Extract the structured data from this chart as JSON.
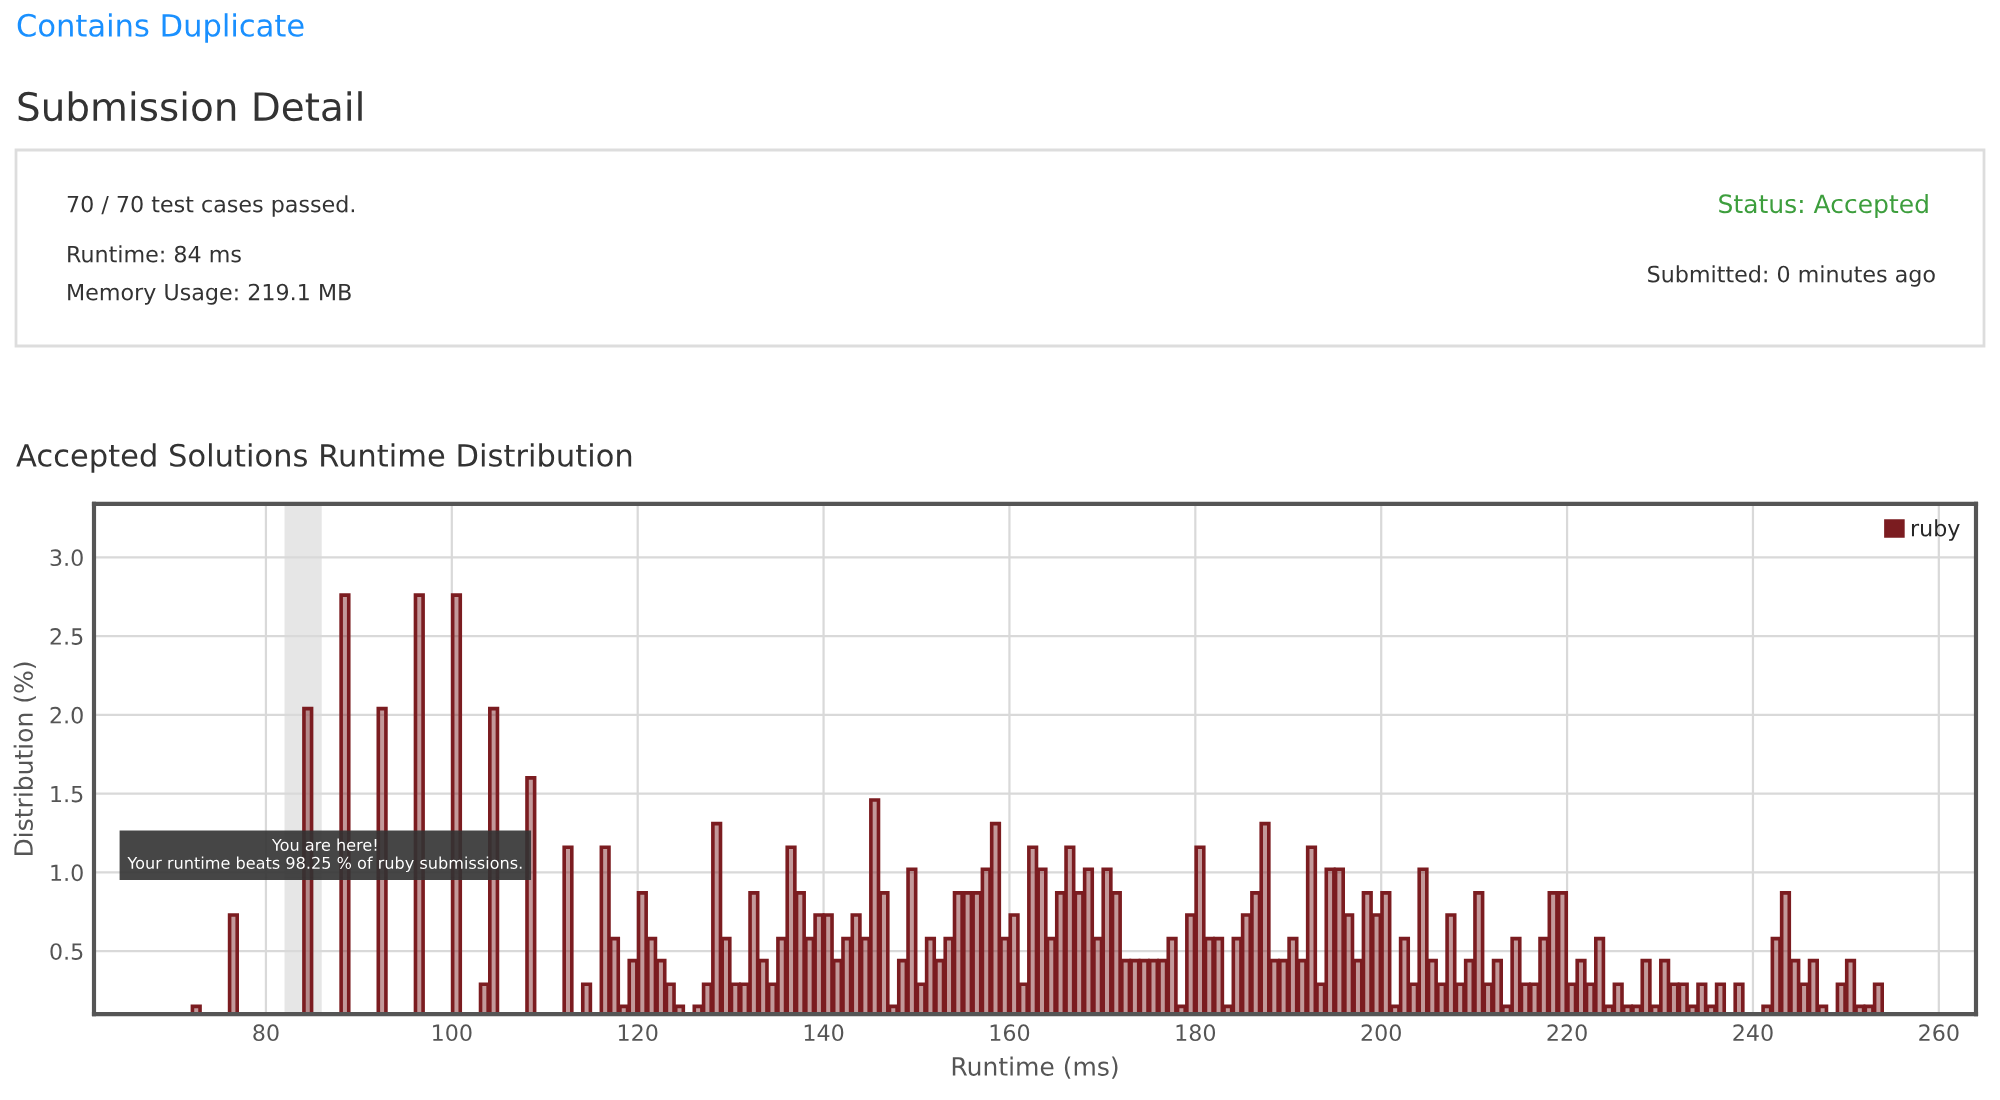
{
  "chart_data": {
    "type": "histogram",
    "title": "Accepted Solutions Runtime Distribution",
    "xlabel": "Runtime (ms)",
    "ylabel": "Distribution (%)",
    "bins": [
      72,
      73,
      74,
      75,
      76,
      77,
      78,
      79,
      80,
      81,
      82,
      83,
      84,
      85,
      86,
      87,
      88,
      89,
      90,
      91,
      92,
      93,
      94,
      95,
      96,
      97,
      98,
      99,
      100,
      101,
      102,
      103,
      104,
      105,
      106,
      107,
      108,
      109,
      110,
      111,
      112,
      113,
      114,
      115,
      116,
      117,
      118,
      119,
      120,
      121,
      122,
      123,
      124,
      125,
      126,
      127,
      128,
      129,
      130,
      131,
      132,
      133,
      134,
      135,
      136,
      137,
      138,
      139,
      140,
      141,
      142,
      143,
      144,
      145,
      146,
      147,
      148,
      149,
      150,
      151,
      152,
      153,
      154,
      155,
      156,
      157,
      158,
      159,
      160,
      161,
      162,
      163,
      164,
      165,
      166,
      167,
      168,
      169,
      170,
      171,
      172,
      173,
      174,
      175,
      176,
      177,
      178,
      179,
      180,
      181,
      182,
      183,
      184,
      185,
      186,
      187,
      188,
      189,
      190,
      191,
      192,
      193,
      194,
      195,
      196,
      197,
      198,
      199,
      200,
      201,
      202,
      203,
      204,
      205,
      206,
      207,
      208,
      209,
      210,
      211,
      212,
      213,
      214,
      215,
      216,
      217,
      218,
      219,
      220,
      221,
      222,
      223,
      224,
      225,
      226,
      227,
      228,
      229,
      230,
      231,
      232,
      233,
      234,
      235,
      236,
      237,
      238,
      239,
      240,
      241,
      242,
      243,
      244,
      245,
      246,
      247,
      248,
      249,
      250,
      251,
      252,
      253,
      254
    ],
    "series": [
      {
        "name": "ruby",
        "color": "#7b1c20",
        "values": [
          0.15,
          null,
          null,
          null,
          0.73,
          null,
          null,
          null,
          null,
          null,
          null,
          null,
          2.04,
          null,
          null,
          null,
          2.76,
          null,
          null,
          null,
          2.04,
          null,
          null,
          null,
          2.76,
          null,
          null,
          null,
          2.76,
          null,
          null,
          0.29,
          2.04,
          null,
          null,
          null,
          1.6,
          null,
          null,
          null,
          1.16,
          null,
          0.29,
          null,
          1.16,
          0.58,
          0.15,
          0.44,
          0.87,
          0.58,
          0.44,
          0.29,
          0.15,
          null,
          0.15,
          0.29,
          1.31,
          0.58,
          0.29,
          0.29,
          0.87,
          0.44,
          0.29,
          0.58,
          1.16,
          0.87,
          0.58,
          0.73,
          0.73,
          0.44,
          0.58,
          0.73,
          0.58,
          1.46,
          0.87,
          0.15,
          0.44,
          1.02,
          0.29,
          0.58,
          0.44,
          0.58,
          0.87,
          0.87,
          0.87,
          1.02,
          1.31,
          0.58,
          0.73,
          0.29,
          1.16,
          1.02,
          0.58,
          0.87,
          1.16,
          0.87,
          1.02,
          0.58,
          1.02,
          0.87,
          0.44,
          0.44,
          0.44,
          0.44,
          0.44,
          0.58,
          0.15,
          0.73,
          1.16,
          0.58,
          0.58,
          0.15,
          0.58,
          0.73,
          0.87,
          1.31,
          0.44,
          0.44,
          0.58,
          0.44,
          1.16,
          0.29,
          1.02,
          1.02,
          0.73,
          0.44,
          0.87,
          0.73,
          0.87,
          0.15,
          0.58,
          0.29,
          1.02,
          0.44,
          0.29,
          0.73,
          0.29,
          0.44,
          0.87,
          0.29,
          0.44,
          0.15,
          0.58,
          0.29,
          0.29,
          0.58,
          0.87,
          0.87,
          0.29,
          0.44,
          0.29,
          0.58,
          0.15,
          0.29,
          0.15,
          0.15,
          0.44,
          0.15,
          0.44,
          0.29,
          0.29,
          0.15,
          0.29,
          0.15,
          0.29,
          null,
          0.29,
          null,
          null,
          0.15,
          0.58,
          0.87,
          0.44,
          0.29,
          0.44,
          0.15,
          null,
          0.29,
          0.44,
          0.15,
          0.15,
          0.29
        ]
      }
    ],
    "xlim": [
      61.5,
      264
    ],
    "xticks": [
      80,
      100,
      120,
      140,
      160,
      180,
      200,
      220,
      240,
      260
    ],
    "ylim": [
      0.1,
      3.34
    ],
    "yticks": [
      {
        "value": 0.5,
        "label": "0.5"
      },
      {
        "value": 1.0,
        "label": "1.0"
      },
      {
        "value": 1.5,
        "label": "1.5"
      },
      {
        "value": 2.0,
        "label": "2.0"
      },
      {
        "value": 2.5,
        "label": "2.5"
      },
      {
        "value": 3.0,
        "label": "3.0"
      }
    ],
    "bands": [
      {
        "axis": "x",
        "from": 82,
        "to": 86,
        "color": "#e6e6e6"
      }
    ],
    "annotations": [
      "Contains Duplicate",
      "Submission Detail",
      "70 / 70 test cases passed.",
      "Runtime: 84 ms",
      "Memory Usage: 219.1 MB",
      "Status: Accepted",
      "Submitted: 0 minutes ago",
      {
        "text": "You are here!\nYour runtime beats 98.25 % of ruby submissions.",
        "x": 84,
        "y": 0.72
      }
    ],
    "grid": true,
    "legend": "top right"
  }
}
